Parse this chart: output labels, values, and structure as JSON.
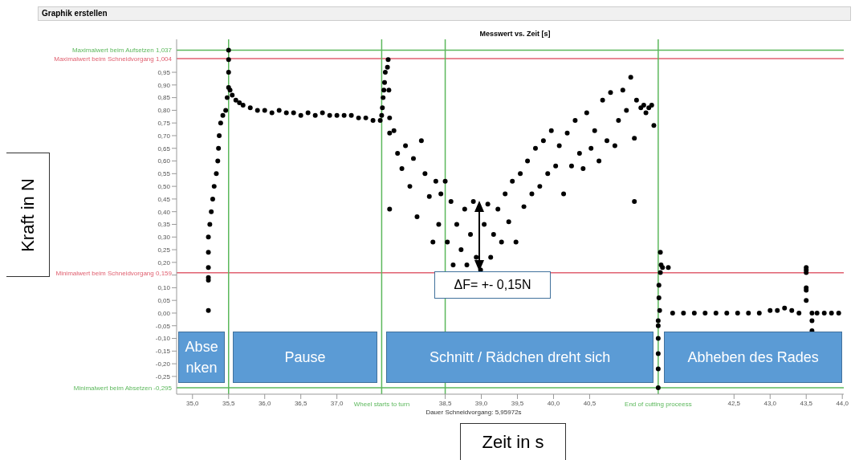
{
  "chart_data": {
    "type": "scatter",
    "title": "Messwert vs. Zeit [s]",
    "xlabel": "Zeit in s",
    "annotations": [
      "Graphik erstellen",
      "Dauer Schneidvorgang: 5,95972s",
      "Absenken",
      "Pause",
      "Schnitt / Rädchen dreht sich",
      "Abheben des Rades",
      "ΔF= +- 0,15N",
      "Kraft in N"
    ],
    "color": "#000000",
    "marker": "circle",
    "grid": false,
    "legend": false,
    "x": [
      35.22,
      35.22,
      35.22,
      35.22,
      35.22,
      35.22,
      35.24,
      35.26,
      35.28,
      35.3,
      35.33,
      35.35,
      35.36,
      35.37,
      35.39,
      35.42,
      35.46,
      35.48,
      35.5,
      35.5,
      35.5,
      35.5,
      35.52,
      35.55,
      35.6,
      35.65,
      35.7,
      35.8,
      35.9,
      36.0,
      36.1,
      36.2,
      36.3,
      36.4,
      36.5,
      36.6,
      36.7,
      36.8,
      36.9,
      37.0,
      37.1,
      37.2,
      37.3,
      37.4,
      37.5,
      37.6,
      37.62,
      37.63,
      37.64,
      37.65,
      37.66,
      37.67,
      37.7,
      37.71,
      37.72,
      37.73,
      37.73,
      37.73,
      37.79,
      37.84,
      37.9,
      37.95,
      38.01,
      38.06,
      38.11,
      38.17,
      38.22,
      38.28,
      38.33,
      38.37,
      38.41,
      38.44,
      38.5,
      38.53,
      38.58,
      38.61,
      38.66,
      38.72,
      38.77,
      38.8,
      38.85,
      38.89,
      38.93,
      38.99,
      39.04,
      39.09,
      39.13,
      39.17,
      39.23,
      39.28,
      39.33,
      39.38,
      39.43,
      39.48,
      39.54,
      39.59,
      39.64,
      39.7,
      39.75,
      39.81,
      39.86,
      39.92,
      39.97,
      40.03,
      40.08,
      40.14,
      40.19,
      40.25,
      40.3,
      40.36,
      40.41,
      40.46,
      40.52,
      40.57,
      40.63,
      40.68,
      40.74,
      40.79,
      40.85,
      40.9,
      40.96,
      41.01,
      41.07,
      41.12,
      41.12,
      41.15,
      41.21,
      41.25,
      41.28,
      41.32,
      41.36,
      41.39,
      41.48,
      41.49,
      41.48,
      41.51,
      41.46,
      41.46,
      41.47,
      41.45,
      41.45,
      41.45,
      41.45,
      41.45,
      41.45,
      41.59,
      41.65,
      41.8,
      41.95,
      42.1,
      42.25,
      42.4,
      42.55,
      42.7,
      42.85,
      43.0,
      43.1,
      43.2,
      43.3,
      43.4,
      43.5,
      43.5,
      43.5,
      43.5,
      43.5,
      43.5,
      43.58,
      43.58,
      43.58,
      43.65,
      43.75,
      43.85,
      43.95
    ],
    "values": [
      0.18,
      0.24,
      0.14,
      0.13,
      0.01,
      0.3,
      0.35,
      0.4,
      0.45,
      0.5,
      0.55,
      0.6,
      0.65,
      0.7,
      0.75,
      0.78,
      0.8,
      0.85,
      0.89,
      1.037,
      1.0,
      0.95,
      0.88,
      0.86,
      0.84,
      0.83,
      0.82,
      0.81,
      0.8,
      0.8,
      0.79,
      0.8,
      0.79,
      0.79,
      0.78,
      0.79,
      0.78,
      0.79,
      0.78,
      0.78,
      0.78,
      0.78,
      0.77,
      0.77,
      0.76,
      0.76,
      0.78,
      0.81,
      0.85,
      0.88,
      0.91,
      0.95,
      0.97,
      1.0,
      0.88,
      0.77,
      0.71,
      0.41,
      0.72,
      0.63,
      0.57,
      0.66,
      0.5,
      0.61,
      0.38,
      0.68,
      0.55,
      0.46,
      0.28,
      0.52,
      0.35,
      0.47,
      0.52,
      0.28,
      0.44,
      0.19,
      0.35,
      0.25,
      0.41,
      0.19,
      0.31,
      0.44,
      0.22,
      0.17,
      0.35,
      0.43,
      0.22,
      0.31,
      0.41,
      0.28,
      0.47,
      0.36,
      0.52,
      0.28,
      0.55,
      0.42,
      0.6,
      0.47,
      0.65,
      0.5,
      0.68,
      0.55,
      0.72,
      0.58,
      0.66,
      0.47,
      0.71,
      0.58,
      0.76,
      0.63,
      0.57,
      0.79,
      0.65,
      0.72,
      0.6,
      0.84,
      0.68,
      0.87,
      0.66,
      0.76,
      0.88,
      0.8,
      0.93,
      0.69,
      0.44,
      0.84,
      0.81,
      0.82,
      0.79,
      0.81,
      0.82,
      0.74,
      0.24,
      0.19,
      0.16,
      0.18,
      0.11,
      0.06,
      0.01,
      -0.03,
      -0.05,
      -0.1,
      -0.16,
      -0.22,
      -0.295,
      0.18,
      0.0,
      0.0,
      0.0,
      0.0,
      0.0,
      0.0,
      0.0,
      0.0,
      0.0,
      0.01,
      0.01,
      0.02,
      0.01,
      0.0,
      0.18,
      0.17,
      0.16,
      0.1,
      0.09,
      0.05,
      0.0,
      -0.03,
      -0.07,
      0.0,
      0.0,
      0.0,
      0.0
    ],
    "xlim": [
      34.78,
      44.02
    ],
    "xticks": [
      {
        "value": 35,
        "label": "35,0"
      },
      {
        "value": 35.5,
        "label": "35,5"
      },
      {
        "value": 36,
        "label": "36,0"
      },
      {
        "value": 36.5,
        "label": "36,5"
      },
      {
        "value": 37,
        "label": "37,0"
      },
      {
        "value": 38.5,
        "label": "38,5"
      },
      {
        "value": 39,
        "label": "39,0"
      },
      {
        "value": 39.5,
        "label": "39,5"
      },
      {
        "value": 40,
        "label": "40,0"
      },
      {
        "value": 40.5,
        "label": "40,5"
      },
      {
        "value": 42.5,
        "label": "42,5"
      },
      {
        "value": 43,
        "label": "43,0"
      },
      {
        "value": 43.5,
        "label": "43,5"
      },
      {
        "value": 44,
        "label": "44,0"
      }
    ],
    "ylim": [
      -0.32,
      1.08
    ],
    "yticks": [
      {
        "value": -0.25,
        "label": "-0,25"
      },
      {
        "value": -0.2,
        "label": "-0,20"
      },
      {
        "value": -0.15,
        "label": "-0,15"
      },
      {
        "value": -0.1,
        "label": "-0,10"
      },
      {
        "value": -0.05,
        "label": "-0,05"
      },
      {
        "value": 0,
        "label": "0,00"
      },
      {
        "value": 0.05,
        "label": "0,05"
      },
      {
        "value": 0.1,
        "label": "0,10"
      },
      {
        "value": 0.15,
        "label": null
      },
      {
        "value": 0.2,
        "label": "0,20"
      },
      {
        "value": 0.25,
        "label": "0,25"
      },
      {
        "value": 0.3,
        "label": "0,30"
      },
      {
        "value": 0.35,
        "label": "0,35"
      },
      {
        "value": 0.4,
        "label": "0,40"
      },
      {
        "value": 0.45,
        "label": "0,45"
      },
      {
        "value": 0.5,
        "label": "0,50"
      },
      {
        "value": 0.55,
        "label": "0,55"
      },
      {
        "value": 0.6,
        "label": "0,60"
      },
      {
        "value": 0.65,
        "label": "0,65"
      },
      {
        "value": 0.7,
        "label": "0,70"
      },
      {
        "value": 0.75,
        "label": "0,75"
      },
      {
        "value": 0.8,
        "label": "0,80"
      },
      {
        "value": 0.85,
        "label": "0,85"
      },
      {
        "value": 0.9,
        "label": "0,90"
      },
      {
        "value": 0.95,
        "label": "0,95"
      }
    ],
    "ref_lines": [
      {
        "axis": "y",
        "value": 1.037,
        "label": "Maximalwert beim Aufsetzen 1,037",
        "color": "#5cb85c"
      },
      {
        "axis": "y",
        "value": 1.004,
        "label": "Maximalwert beim Schneidvorgang 1,004",
        "color": "#e06070"
      },
      {
        "axis": "y",
        "value": 0.159,
        "label": "Minimalwert beim Schneidvorgang 0,159",
        "color": "#e06070"
      },
      {
        "axis": "y",
        "value": -0.295,
        "label": "Minimalwert beim Absetzen -0,295",
        "color": "#5cb85c"
      },
      {
        "axis": "x",
        "value": 35.5,
        "label": null,
        "color": "#5cb85c"
      },
      {
        "axis": "x",
        "value": 37.62,
        "label": "Wheel starts to turn",
        "color": "#5cb85c"
      },
      {
        "axis": "x",
        "value": 38.5,
        "label": null,
        "color": "#5cb85c"
      },
      {
        "axis": "x",
        "value": 41.45,
        "label": "End of cutting proceess",
        "color": "#5cb85c"
      }
    ]
  }
}
